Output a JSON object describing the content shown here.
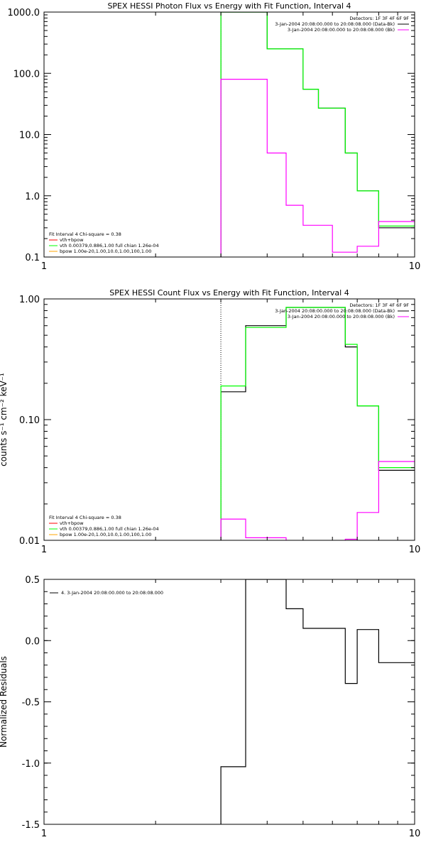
{
  "colors": {
    "background": "#ffffff",
    "axes": "#000000",
    "data": "#000000",
    "vth_bpow": "#ff00ff",
    "vth": "#00ff00",
    "bpow": "#ffa500"
  },
  "chart_data": [
    {
      "type": "line",
      "title": "SPEX HESSI Photon Flux vs Energy with Fit Function, Interval 4",
      "xlabel": "",
      "ylabel": "",
      "x_scale": "log",
      "y_scale": "log",
      "xlim": [
        1,
        10
      ],
      "ylim": [
        0.1,
        1000
      ],
      "x_ticks": [
        {
          "v": 1,
          "label": "1"
        },
        {
          "v": 10,
          "label": "10"
        }
      ],
      "y_ticks": [
        {
          "v": 0.1,
          "label": "0.1"
        },
        {
          "v": 1,
          "label": "1.0"
        },
        {
          "v": 10,
          "label": "10.0"
        },
        {
          "v": 100,
          "label": "100.0"
        },
        {
          "v": 1000,
          "label": "1000.0"
        }
      ],
      "vline": 3.0,
      "vline_color": "#00aa00",
      "vline_style": "dotted",
      "legend_right": [
        {
          "text": "Detectors: 1F 3F 4F 6F 9F",
          "color": ""
        },
        {
          "text": "3-Jan-2004 20:08:00.000 to 20:08:08.000 (Data-Bk)",
          "color": "#000000"
        },
        {
          "text": "3-Jan-2004 20:08:00.000 to 20:08:08.000 (Bk)",
          "color": "#ff00ff"
        }
      ],
      "legend_left": [
        {
          "text": "Fit Interval 4   Chi-square = 0.38",
          "color": ""
        },
        {
          "text": "vth+bpow",
          "color": "#ff0000"
        },
        {
          "text": "vth 0.00379,0.886,1.00  full chian 1.26e-04",
          "color": "#00ff00"
        },
        {
          "text": "bpow 1.00e-20,1.00,10.0,1.00,100,1.00",
          "color": "#ffa500"
        }
      ],
      "series": [
        {
          "name": "Data-Bk",
          "color": "#000000",
          "edges": [
            3.0,
            3.5,
            4.0,
            4.5,
            5.0,
            5.5,
            6.0,
            6.5,
            7.0,
            8.0,
            9.0,
            10.0
          ],
          "values": [
            1000,
            1000,
            250,
            250,
            55,
            27,
            27,
            5,
            1.2,
            0.3,
            0.3
          ]
        },
        {
          "name": "vth+bpow",
          "color": "#00ff00",
          "edges": [
            3.0,
            3.5,
            4.0,
            4.5,
            5.0,
            5.5,
            6.0,
            6.5,
            7.0,
            8.0,
            9.0,
            10.0
          ],
          "values": [
            1000,
            1000,
            250,
            250,
            55,
            27,
            27,
            5,
            1.2,
            0.32,
            0.32
          ]
        },
        {
          "name": "Bk",
          "color": "#ff00ff",
          "edges": [
            3.0,
            4.0,
            4.5,
            5.0,
            5.5,
            6.0,
            7.0,
            8.0,
            9.0,
            10.0
          ],
          "values": [
            80,
            5,
            0.7,
            0.33,
            0.33,
            0.12,
            0.15,
            0.38,
            0.38
          ]
        }
      ]
    },
    {
      "type": "line",
      "title": "SPEX HESSI Count Flux vs Energy with Fit Function, Interval 4",
      "xlabel": "",
      "ylabel": "counts s⁻¹ cm⁻² keV⁻¹",
      "x_scale": "log",
      "y_scale": "log",
      "xlim": [
        1,
        10
      ],
      "ylim": [
        0.01,
        1
      ],
      "x_ticks": [
        {
          "v": 1,
          "label": "1"
        },
        {
          "v": 10,
          "label": "10"
        }
      ],
      "y_ticks": [
        {
          "v": 0.01,
          "label": "0.01"
        },
        {
          "v": 0.1,
          "label": "0.10"
        },
        {
          "v": 1,
          "label": "1.00"
        }
      ],
      "vline": 3.0,
      "vline_color": "#000000",
      "vline_style": "dotted",
      "legend_right": [
        {
          "text": "Detectors: 1F 3F 4F 6F 9F",
          "color": ""
        },
        {
          "text": "3-Jan-2004 20:08:00.000 to 20:08:08.000 (Data-Bk)",
          "color": "#000000"
        },
        {
          "text": "3-Jan-2004 20:08:00.000 to 20:08:08.000 (Bk)",
          "color": "#ff00ff"
        }
      ],
      "legend_left": [
        {
          "text": "Fit Interval 4   Chi-square = 0.38",
          "color": ""
        },
        {
          "text": "vth+bpow",
          "color": "#ff0000"
        },
        {
          "text": "vth 0.00379,0.886,1.00  full chian 1.26e-04",
          "color": "#00ff00"
        },
        {
          "text": "bpow 1.00e-20,1.00,10.0,1.00,100,1.00",
          "color": "#ffa500"
        }
      ],
      "series": [
        {
          "name": "Data-Bk",
          "color": "#000000",
          "edges": [
            3.0,
            3.5,
            4.0,
            4.5,
            5.0,
            5.5,
            6.0,
            6.5,
            7.0,
            8.0,
            9.0,
            10.0
          ],
          "values": [
            0.17,
            0.6,
            0.6,
            0.85,
            0.85,
            0.85,
            0.85,
            0.4,
            0.13,
            0.038,
            0.038
          ]
        },
        {
          "name": "vth+bpow",
          "color": "#00ff00",
          "edges": [
            3.0,
            3.5,
            4.0,
            4.5,
            5.0,
            5.5,
            6.0,
            6.5,
            7.0,
            8.0,
            9.0,
            10.0
          ],
          "values": [
            0.19,
            0.58,
            0.58,
            0.85,
            0.85,
            0.85,
            0.85,
            0.42,
            0.13,
            0.04,
            0.04
          ]
        },
        {
          "name": "Bk",
          "color": "#ff00ff",
          "edges": [
            3.0,
            3.5,
            4.0,
            4.5,
            5.0,
            5.5,
            6.0,
            6.5,
            7.0,
            8.0,
            9.0,
            10.0
          ],
          "values": [
            0.015,
            0.0105,
            0.0105,
            0.0098,
            0.0098,
            0.0098,
            0.0098,
            0.0102,
            0.017,
            0.045,
            0.045
          ]
        }
      ]
    },
    {
      "type": "line",
      "title": "",
      "xlabel": "",
      "ylabel": "Normalized Residuals",
      "x_scale": "log",
      "y_scale": "linear",
      "xlim": [
        1,
        10
      ],
      "ylim": [
        -1.5,
        0.5
      ],
      "x_ticks": [
        {
          "v": 1,
          "label": "1"
        },
        {
          "v": 10,
          "label": "10"
        }
      ],
      "y_ticks": [
        {
          "v": -1.5,
          "label": "-1.5"
        },
        {
          "v": -1.0,
          "label": "-1.0"
        },
        {
          "v": -0.5,
          "label": "-0.5"
        },
        {
          "v": 0.0,
          "label": "0.0"
        },
        {
          "v": 0.5,
          "label": "0.5"
        }
      ],
      "legend_left_top": [
        {
          "text": "4.  3-Jan-2004 20:08:00.000 to 20:08:08.000",
          "color": "#000000"
        }
      ],
      "series": [
        {
          "name": "",
          "color": "#000000",
          "edges": [
            3.0,
            3.5,
            4.0,
            4.5,
            5.0,
            5.5,
            6.0,
            6.5,
            7.0,
            8.0,
            9.0,
            10.0
          ],
          "values": [
            -1.03,
            0.5,
            0.5,
            0.26,
            0.1,
            0.1,
            0.1,
            -0.35,
            0.09,
            -0.18,
            -0.18
          ]
        }
      ]
    }
  ]
}
